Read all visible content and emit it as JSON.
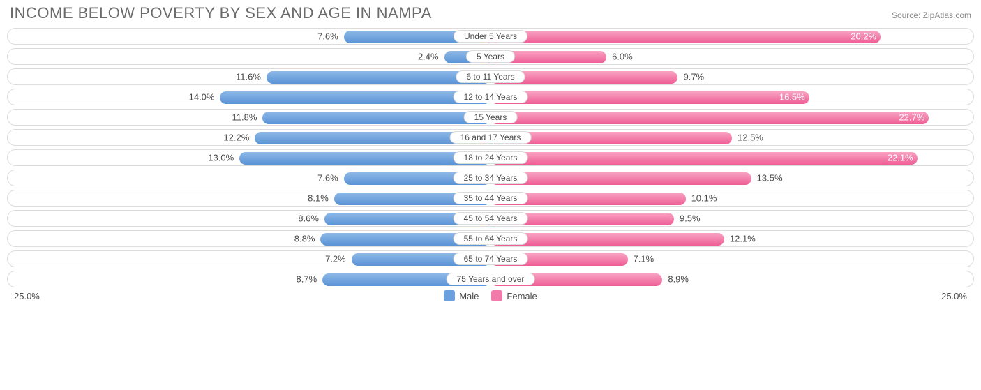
{
  "title": "INCOME BELOW POVERTY BY SEX AND AGE IN NAMPA",
  "source": "Source: ZipAtlas.com",
  "axis_max": 25.0,
  "axis_label_left": "25.0%",
  "axis_label_right": "25.0%",
  "legend": {
    "male": "Male",
    "female": "Female",
    "male_color": "#6aa0de",
    "female_color": "#f17aab"
  },
  "colors": {
    "row_border": "#dcdcdc",
    "text": "#4a4a4a",
    "title": "#6b6b6b"
  },
  "rows": [
    {
      "label": "Under 5 Years",
      "male": 7.6,
      "female": 20.2,
      "male_txt": "7.6%",
      "female_txt": "20.2%",
      "m_inside": false,
      "f_inside": true
    },
    {
      "label": "5 Years",
      "male": 2.4,
      "female": 6.0,
      "male_txt": "2.4%",
      "female_txt": "6.0%",
      "m_inside": false,
      "f_inside": false
    },
    {
      "label": "6 to 11 Years",
      "male": 11.6,
      "female": 9.7,
      "male_txt": "11.6%",
      "female_txt": "9.7%",
      "m_inside": false,
      "f_inside": false
    },
    {
      "label": "12 to 14 Years",
      "male": 14.0,
      "female": 16.5,
      "male_txt": "14.0%",
      "female_txt": "16.5%",
      "m_inside": false,
      "f_inside": true
    },
    {
      "label": "15 Years",
      "male": 11.8,
      "female": 22.7,
      "male_txt": "11.8%",
      "female_txt": "22.7%",
      "m_inside": false,
      "f_inside": true
    },
    {
      "label": "16 and 17 Years",
      "male": 12.2,
      "female": 12.5,
      "male_txt": "12.2%",
      "female_txt": "12.5%",
      "m_inside": false,
      "f_inside": false
    },
    {
      "label": "18 to 24 Years",
      "male": 13.0,
      "female": 22.1,
      "male_txt": "13.0%",
      "female_txt": "22.1%",
      "m_inside": false,
      "f_inside": true
    },
    {
      "label": "25 to 34 Years",
      "male": 7.6,
      "female": 13.5,
      "male_txt": "7.6%",
      "female_txt": "13.5%",
      "m_inside": false,
      "f_inside": false
    },
    {
      "label": "35 to 44 Years",
      "male": 8.1,
      "female": 10.1,
      "male_txt": "8.1%",
      "female_txt": "10.1%",
      "m_inside": false,
      "f_inside": false
    },
    {
      "label": "45 to 54 Years",
      "male": 8.6,
      "female": 9.5,
      "male_txt": "8.6%",
      "female_txt": "9.5%",
      "m_inside": false,
      "f_inside": false
    },
    {
      "label": "55 to 64 Years",
      "male": 8.8,
      "female": 12.1,
      "male_txt": "8.8%",
      "female_txt": "12.1%",
      "m_inside": false,
      "f_inside": false
    },
    {
      "label": "65 to 74 Years",
      "male": 7.2,
      "female": 7.1,
      "male_txt": "7.2%",
      "female_txt": "7.1%",
      "m_inside": false,
      "f_inside": false
    },
    {
      "label": "75 Years and over",
      "male": 8.7,
      "female": 8.9,
      "male_txt": "8.7%",
      "female_txt": "8.9%",
      "m_inside": false,
      "f_inside": false
    }
  ]
}
